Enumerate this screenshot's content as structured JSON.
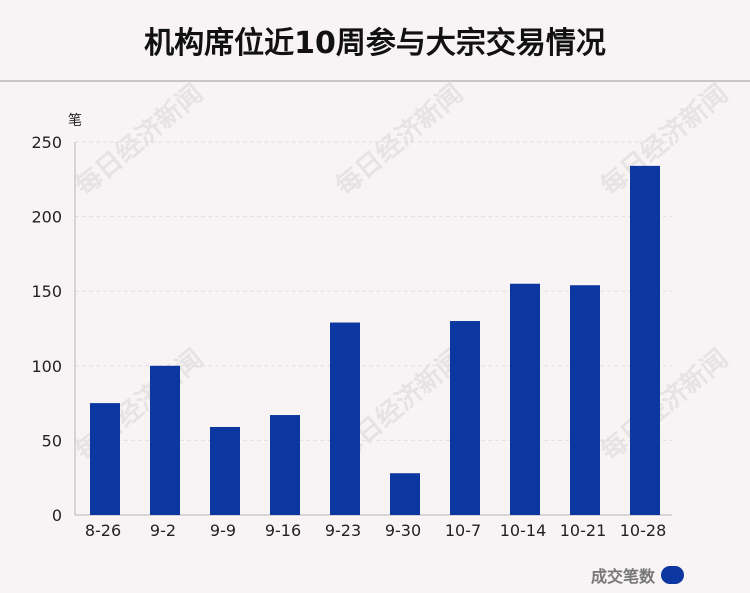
{
  "title": "机构席位近10周参与大宗交易情况",
  "watermark_text": "每日经济新闻",
  "colors": {
    "bar": "#0d37a0",
    "background": "#f8f4f5",
    "grid": "#e2dedf",
    "axis": "#b8b4b5"
  },
  "chart_data": {
    "type": "bar",
    "categories": [
      "8-26",
      "9-2",
      "9-9",
      "9-16",
      "9-23",
      "9-30",
      "10-7",
      "10-14",
      "10-21",
      "10-28"
    ],
    "series": [
      {
        "name": "成交笔数",
        "values": [
          75,
          100,
          59,
          67,
          129,
          28,
          130,
          155,
          154,
          234
        ]
      }
    ],
    "ylabel": "笔",
    "xlabel": "",
    "ylim": [
      0,
      250
    ],
    "yticks": [
      0,
      50,
      100,
      150,
      200,
      250
    ],
    "grid": true,
    "legend": "bottom-right"
  }
}
